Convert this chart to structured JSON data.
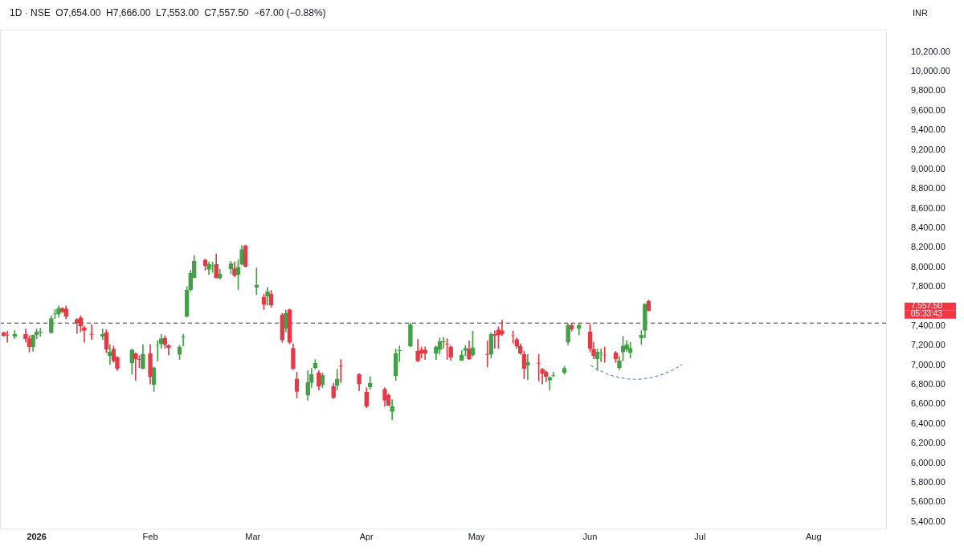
{
  "chart_data": {
    "type": "candlestick",
    "title": "1D · NSE  O7,654.00  H7,666.00  L7,553.00  C7,557.50  −67.00 (−0.88%)",
    "ylabel": "INR",
    "x": [
      "2025-12-23",
      "2025-12-24",
      "2025-12-26",
      "2025-12-29",
      "2025-12-30",
      "2025-12-31",
      "2026-01-01",
      "2026-01-02",
      "2026-01-05",
      "2026-01-06",
      "2026-01-07",
      "2026-01-08",
      "2026-01-09",
      "2026-01-12",
      "2026-01-13",
      "2026-01-14",
      "2026-01-16",
      "2026-01-19",
      "2026-01-20",
      "2026-01-21",
      "2026-01-22",
      "2026-01-23",
      "2026-01-27",
      "2026-01-28",
      "2026-01-29",
      "2026-01-30",
      "2026-02-01",
      "2026-02-02",
      "2026-02-03",
      "2026-02-04",
      "2026-02-05",
      "2026-02-06",
      "2026-02-09",
      "2026-02-10",
      "2026-02-11",
      "2026-02-12",
      "2026-02-13",
      "2026-02-16",
      "2026-02-17",
      "2026-02-18",
      "2026-02-19",
      "2026-02-20",
      "2026-02-23",
      "2026-02-24",
      "2026-02-25",
      "2026-02-26",
      "2026-02-27",
      "2026-03-02",
      "2026-03-04",
      "2026-03-05",
      "2026-03-06",
      "2026-03-09",
      "2026-03-10",
      "2026-03-11",
      "2026-03-12",
      "2026-03-13",
      "2026-03-16",
      "2026-03-17",
      "2026-03-18",
      "2026-03-19",
      "2026-03-20",
      "2026-03-23",
      "2026-03-24",
      "2026-03-25",
      "2026-03-30",
      "2026-04-01",
      "2026-04-02",
      "2026-04-06",
      "2026-04-07",
      "2026-04-08",
      "2026-04-09",
      "2026-04-10",
      "2026-04-13",
      "2026-04-15",
      "2026-04-16",
      "2026-04-17",
      "2026-04-20",
      "2026-04-21",
      "2026-04-22",
      "2026-04-23",
      "2026-04-24",
      "2026-04-27",
      "2026-04-28",
      "2026-04-29",
      "2026-04-30",
      "2026-05-04",
      "2026-05-05",
      "2026-05-06",
      "2026-05-07",
      "2026-05-08",
      "2026-05-11",
      "2026-05-12",
      "2026-05-13",
      "2026-05-14",
      "2026-05-15",
      "2026-05-18",
      "2026-05-19",
      "2026-05-20",
      "2026-05-21",
      "2026-05-22",
      "2026-05-25",
      "2026-05-26",
      "2026-05-27",
      "2026-05-29",
      "2026-06-01",
      "2026-06-02",
      "2026-06-03",
      "2026-06-04",
      "2026-06-05",
      "2026-06-08",
      "2026-06-09",
      "2026-06-10",
      "2026-06-11",
      "2026-06-12",
      "2026-06-15",
      "2026-06-16",
      "2026-06-17"
    ],
    "ohlc": [
      [
        7332,
        7340,
        7295,
        7301
      ],
      [
        7310,
        7347,
        7233,
        7305
      ],
      [
        7294,
        7354,
        7271,
        7316
      ],
      [
        7316,
        7370,
        7233,
        7271
      ],
      [
        7271,
        7301,
        7134,
        7187
      ],
      [
        7187,
        7309,
        7142,
        7309
      ],
      [
        7309,
        7370,
        7271,
        7339
      ],
      [
        7335,
        7377,
        7294,
        7340
      ],
      [
        7332,
        7506,
        7324,
        7476
      ],
      [
        7520,
        7567,
        7476,
        7525
      ],
      [
        7522,
        7605,
        7491,
        7582
      ],
      [
        7582,
        7590,
        7537,
        7544
      ],
      [
        7575,
        7605,
        7476,
        7499
      ],
      [
        7468,
        7476,
        7324,
        7430
      ],
      [
        7484,
        7506,
        7339,
        7400
      ],
      [
        7385,
        7400,
        7233,
        7354
      ],
      [
        7318,
        7415,
        7263,
        7314
      ],
      [
        7294,
        7370,
        7263,
        7316
      ],
      [
        7332,
        7362,
        7126,
        7164
      ],
      [
        7096,
        7210,
        7005,
        7134
      ],
      [
        7164,
        7195,
        7028,
        7043
      ],
      [
        7081,
        7088,
        6944,
        6967
      ],
      [
        7020,
        7164,
        6906,
        7157
      ],
      [
        7119,
        7126,
        6845,
        7066
      ],
      [
        7060,
        7096,
        6974,
        7055
      ],
      [
        6967,
        7210,
        6960,
        7111
      ],
      [
        7119,
        7210,
        6807,
        6883
      ],
      [
        6800,
        6982,
        6731,
        6974
      ],
      [
        7200,
        7248,
        7043,
        7204
      ],
      [
        7218,
        7316,
        7172,
        7271
      ],
      [
        7278,
        7301,
        7172,
        7210
      ],
      [
        7202,
        7210,
        7104,
        7180
      ],
      [
        7111,
        7202,
        7058,
        7187
      ],
      [
        7283,
        7316,
        7195,
        7288
      ],
      [
        7499,
        7803,
        7490,
        7765
      ],
      [
        7772,
        7970,
        7757,
        7940
      ],
      [
        7894,
        8122,
        7890,
        8061
      ],
      [
        8076,
        8084,
        7970,
        8016
      ],
      [
        7978,
        8054,
        7925,
        8031
      ],
      [
        8014,
        8054,
        7947,
        8018
      ],
      [
        8031,
        8137,
        7887,
        7894
      ],
      [
        7887,
        7978,
        7879,
        7932
      ],
      [
        7985,
        8061,
        7932,
        8039
      ],
      [
        7985,
        8054,
        7902,
        7917
      ],
      [
        7925,
        8076,
        7772,
        8001
      ],
      [
        8031,
        8221,
        8024,
        8183
      ],
      [
        8221,
        8228,
        8001,
        8008
      ],
      [
        7795,
        7993,
        7719,
        7818
      ],
      [
        7696,
        7727,
        7567,
        7620
      ],
      [
        7704,
        7795,
        7613,
        7750
      ],
      [
        7727,
        7765,
        7590,
        7613
      ],
      [
        7514,
        7529,
        7233,
        7256
      ],
      [
        7377,
        7560,
        7339,
        7529
      ],
      [
        7567,
        7575,
        7218,
        7233
      ],
      [
        7172,
        7218,
        6952,
        6967
      ],
      [
        6860,
        6929,
        6663,
        6731
      ],
      [
        6693,
        6944,
        6640,
        6822
      ],
      [
        6822,
        6967,
        6769,
        6906
      ],
      [
        6974,
        7058,
        6959,
        7020
      ],
      [
        6921,
        6944,
        6746,
        6784
      ],
      [
        6800,
        6921,
        6769,
        6898
      ],
      [
        6784,
        6815,
        6655,
        6670
      ],
      [
        6792,
        6959,
        6746,
        6860
      ],
      [
        6992,
        7058,
        6822,
        6988
      ],
      [
        6906,
        6914,
        6739,
        6807
      ],
      [
        6723,
        6769,
        6564,
        6579
      ],
      [
        6777,
        6883,
        6754,
        6815
      ],
      [
        6754,
        6769,
        6579,
        6640
      ],
      [
        6693,
        6708,
        6587,
        6590
      ],
      [
        6526,
        6648,
        6442,
        6579
      ],
      [
        6891,
        7164,
        6845,
        7119
      ],
      [
        7147,
        7195,
        7035,
        7151
      ],
      [
        7195,
        7430,
        7187,
        7415
      ],
      [
        7142,
        7263,
        7035,
        7043
      ],
      [
        7157,
        7187,
        7073,
        7119
      ],
      [
        7157,
        7187,
        7058,
        7119
      ],
      [
        7119,
        7195,
        7058,
        7187
      ],
      [
        7157,
        7278,
        7111,
        7240
      ],
      [
        7238,
        7286,
        7172,
        7242
      ],
      [
        7220,
        7271,
        7058,
        7216
      ],
      [
        7187,
        7202,
        7050,
        7081
      ],
      [
        7050,
        7149,
        7045,
        7104
      ],
      [
        7149,
        7202,
        7096,
        7172
      ],
      [
        7164,
        7248,
        7058,
        7066
      ],
      [
        7104,
        7347,
        7088,
        7180
      ],
      [
        7113,
        7248,
        6982,
        7109
      ],
      [
        7111,
        7332,
        7073,
        7316
      ],
      [
        7316,
        7354,
        7172,
        7301
      ],
      [
        7362,
        7392,
        7172,
        7309
      ],
      [
        7354,
        7461,
        7301,
        7316
      ],
      [
        7303,
        7347,
        7225,
        7299
      ],
      [
        7263,
        7278,
        7172,
        7195
      ],
      [
        7195,
        7218,
        7111,
        7119
      ],
      [
        7111,
        7142,
        6860,
        6967
      ],
      [
        6997,
        7111,
        6853,
        7028
      ],
      [
        7023,
        7111,
        6838,
        7018
      ],
      [
        6959,
        6967,
        6807,
        6914
      ],
      [
        6929,
        6944,
        6830,
        6883
      ],
      [
        6845,
        6883,
        6746,
        6875
      ],
      [
        6889,
        6929,
        6883,
        6893
      ],
      [
        6921,
        6990,
        6906,
        6967
      ],
      [
        7233,
        7423,
        7210,
        7408
      ],
      [
        7408,
        7423,
        7347,
        7370
      ],
      [
        7377,
        7423,
        7309,
        7408
      ],
      [
        7339,
        7423,
        7134,
        7172
      ],
      [
        7164,
        7233,
        7066,
        7096
      ],
      [
        7066,
        7164,
        6944,
        7134
      ],
      [
        7124,
        7164,
        7035,
        7128
      ],
      [
        7106,
        7187,
        7028,
        7102
      ],
      [
        7126,
        7142,
        7028,
        7066
      ],
      [
        6974,
        7088,
        6952,
        7043
      ],
      [
        7134,
        7294,
        7043,
        7195
      ],
      [
        7164,
        7248,
        7142,
        7210
      ],
      [
        7126,
        7233,
        7073,
        7172
      ],
      [
        7278,
        7354,
        7210,
        7309
      ],
      [
        7354,
        7628,
        7278,
        7624
      ],
      [
        7654,
        7666,
        7553,
        7557.5
      ]
    ],
    "colors": [
      "#e53946",
      "#e53946",
      "#43a047",
      "#e53946",
      "#e53946",
      "#43a047",
      "#43a047",
      "#43a047",
      "#43a047",
      "#43a047",
      "#43a047",
      "#e53946",
      "#e53946",
      "#e53946",
      "#e53946",
      "#e53946",
      "#e53946",
      "#43a047",
      "#e53946",
      "#43a047",
      "#e53946",
      "#e53946",
      "#43a047",
      "#e53946",
      "#e53946",
      "#43a047",
      "#e53946",
      "#43a047",
      "#43a047",
      "#43a047",
      "#e53946",
      "#e53946",
      "#43a047",
      "#43a047",
      "#43a047",
      "#43a047",
      "#43a047",
      "#e53946",
      "#43a047",
      "#43a047",
      "#e53946",
      "#43a047",
      "#43a047",
      "#e53946",
      "#43a047",
      "#43a047",
      "#e53946",
      "#43a047",
      "#e53946",
      "#43a047",
      "#e53946",
      "#e53946",
      "#43a047",
      "#e53946",
      "#e53946",
      "#e53946",
      "#43a047",
      "#43a047",
      "#43a047",
      "#e53946",
      "#43a047",
      "#e53946",
      "#43a047",
      "#e53946",
      "#e53946",
      "#e53946",
      "#43a047",
      "#e53946",
      "#e53946",
      "#43a047",
      "#43a047",
      "#43a047",
      "#43a047",
      "#e53946",
      "#e53946",
      "#e53946",
      "#43a047",
      "#43a047",
      "#43a047",
      "#e53946",
      "#e53946",
      "#43a047",
      "#43a047",
      "#e53946",
      "#43a047",
      "#e53946",
      "#43a047",
      "#e53946",
      "#e53946",
      "#e53946",
      "#e53946",
      "#e53946",
      "#e53946",
      "#e53946",
      "#43a047",
      "#e53946",
      "#e53946",
      "#e53946",
      "#43a047",
      "#43a047",
      "#43a047",
      "#43a047",
      "#e53946",
      "#43a047",
      "#e53946",
      "#e53946",
      "#43a047",
      "#43a047",
      "#e53946",
      "#e53946",
      "#43a047",
      "#43a047",
      "#43a047",
      "#43a047",
      "#43a047",
      "#43a047",
      "#e53946"
    ],
    "xlim": [
      "2025-12-22",
      "2026-08-21"
    ],
    "xticks": [
      {
        "value": "2026-01-01",
        "label": "2026"
      },
      {
        "value": "2026-02-01",
        "label": "Feb"
      },
      {
        "value": "2026-03-01",
        "label": "Mar"
      },
      {
        "value": "2026-04-01",
        "label": "Apr"
      },
      {
        "value": "2026-05-01",
        "label": "May"
      },
      {
        "value": "2026-06-01",
        "label": "Jun"
      },
      {
        "value": "2026-07-01",
        "label": "Jul"
      },
      {
        "value": "2026-08-01",
        "label": "Aug"
      }
    ],
    "ylim": [
      5320,
      10430
    ],
    "yticks": [
      {
        "value": 5400,
        "label": "5,400.00"
      },
      {
        "value": 5600,
        "label": "5,600.00"
      },
      {
        "value": 5800,
        "label": "5,800.00"
      },
      {
        "value": 6000,
        "label": "6,000.00"
      },
      {
        "value": 6200,
        "label": "6,200.00"
      },
      {
        "value": 6400,
        "label": "6,400.00"
      },
      {
        "value": 6600,
        "label": "6,600.00"
      },
      {
        "value": 6800,
        "label": "6,800.00"
      },
      {
        "value": 7000,
        "label": "7,000.00"
      },
      {
        "value": 7200,
        "label": "7,200.00"
      },
      {
        "value": 7400,
        "label": "7,400.00"
      },
      {
        "value": 7800,
        "label": "7,800.00"
      },
      {
        "value": 8000,
        "label": "8,000.00"
      },
      {
        "value": 8200,
        "label": "8,200.00"
      },
      {
        "value": 8400,
        "label": "8,400.00"
      },
      {
        "value": 8600,
        "label": "8,600.00"
      },
      {
        "value": 8800,
        "label": "8,800.00"
      },
      {
        "value": 9000,
        "label": "9,000.00"
      },
      {
        "value": 9200,
        "label": "9,200.00"
      },
      {
        "value": 9400,
        "label": "9,400.00"
      },
      {
        "value": 9600,
        "label": "9,600.00"
      },
      {
        "value": 9800,
        "label": "9,800.00"
      },
      {
        "value": 10000,
        "label": "10,000.00"
      },
      {
        "value": 10200,
        "label": "10,200.00"
      }
    ],
    "ref_lines": [
      {
        "axis": "y",
        "value": 7430,
        "color": "#333333",
        "line_style": "dashed"
      }
    ],
    "annotations": [
      "7,557.50",
      "05:33:43"
    ],
    "grid": false,
    "legend": false
  }
}
